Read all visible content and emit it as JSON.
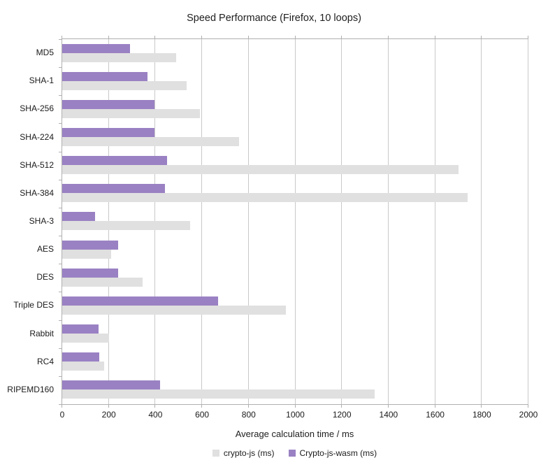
{
  "chart_data": {
    "type": "bar",
    "orientation": "horizontal",
    "title": "Speed Performance (Firefox, 10 loops)",
    "xlabel": "Average calculation time / ms",
    "categories": [
      "MD5",
      "SHA-1",
      "SHA-256",
      "SHA-224",
      "SHA-512",
      "SHA-384",
      "SHA-3",
      "AES",
      "DES",
      "Triple DES",
      "Rabbit",
      "RC4",
      "RIPEMD160"
    ],
    "series": [
      {
        "name": "crypto-js (ms)",
        "color": "#e0e0e0",
        "values": [
          490,
          535,
          590,
          760,
          1700,
          1740,
          550,
          210,
          345,
          960,
          200,
          180,
          1340
        ]
      },
      {
        "name": "Crypto-js-wasm (ms)",
        "color": "#9a81c3",
        "values": [
          290,
          365,
          395,
          395,
          450,
          440,
          140,
          240,
          240,
          670,
          155,
          160,
          420
        ]
      }
    ],
    "xlim": [
      0,
      2000
    ],
    "xticks": [
      0,
      200,
      400,
      600,
      800,
      1000,
      1200,
      1400,
      1600,
      1800,
      2000
    ],
    "grid": true,
    "legend_position": "bottom",
    "series_row_order": [
      1,
      0
    ]
  },
  "colors": {
    "axis": "#b0b0b0",
    "gridline": "#c9c9c9",
    "text": "#1a1a1a"
  }
}
